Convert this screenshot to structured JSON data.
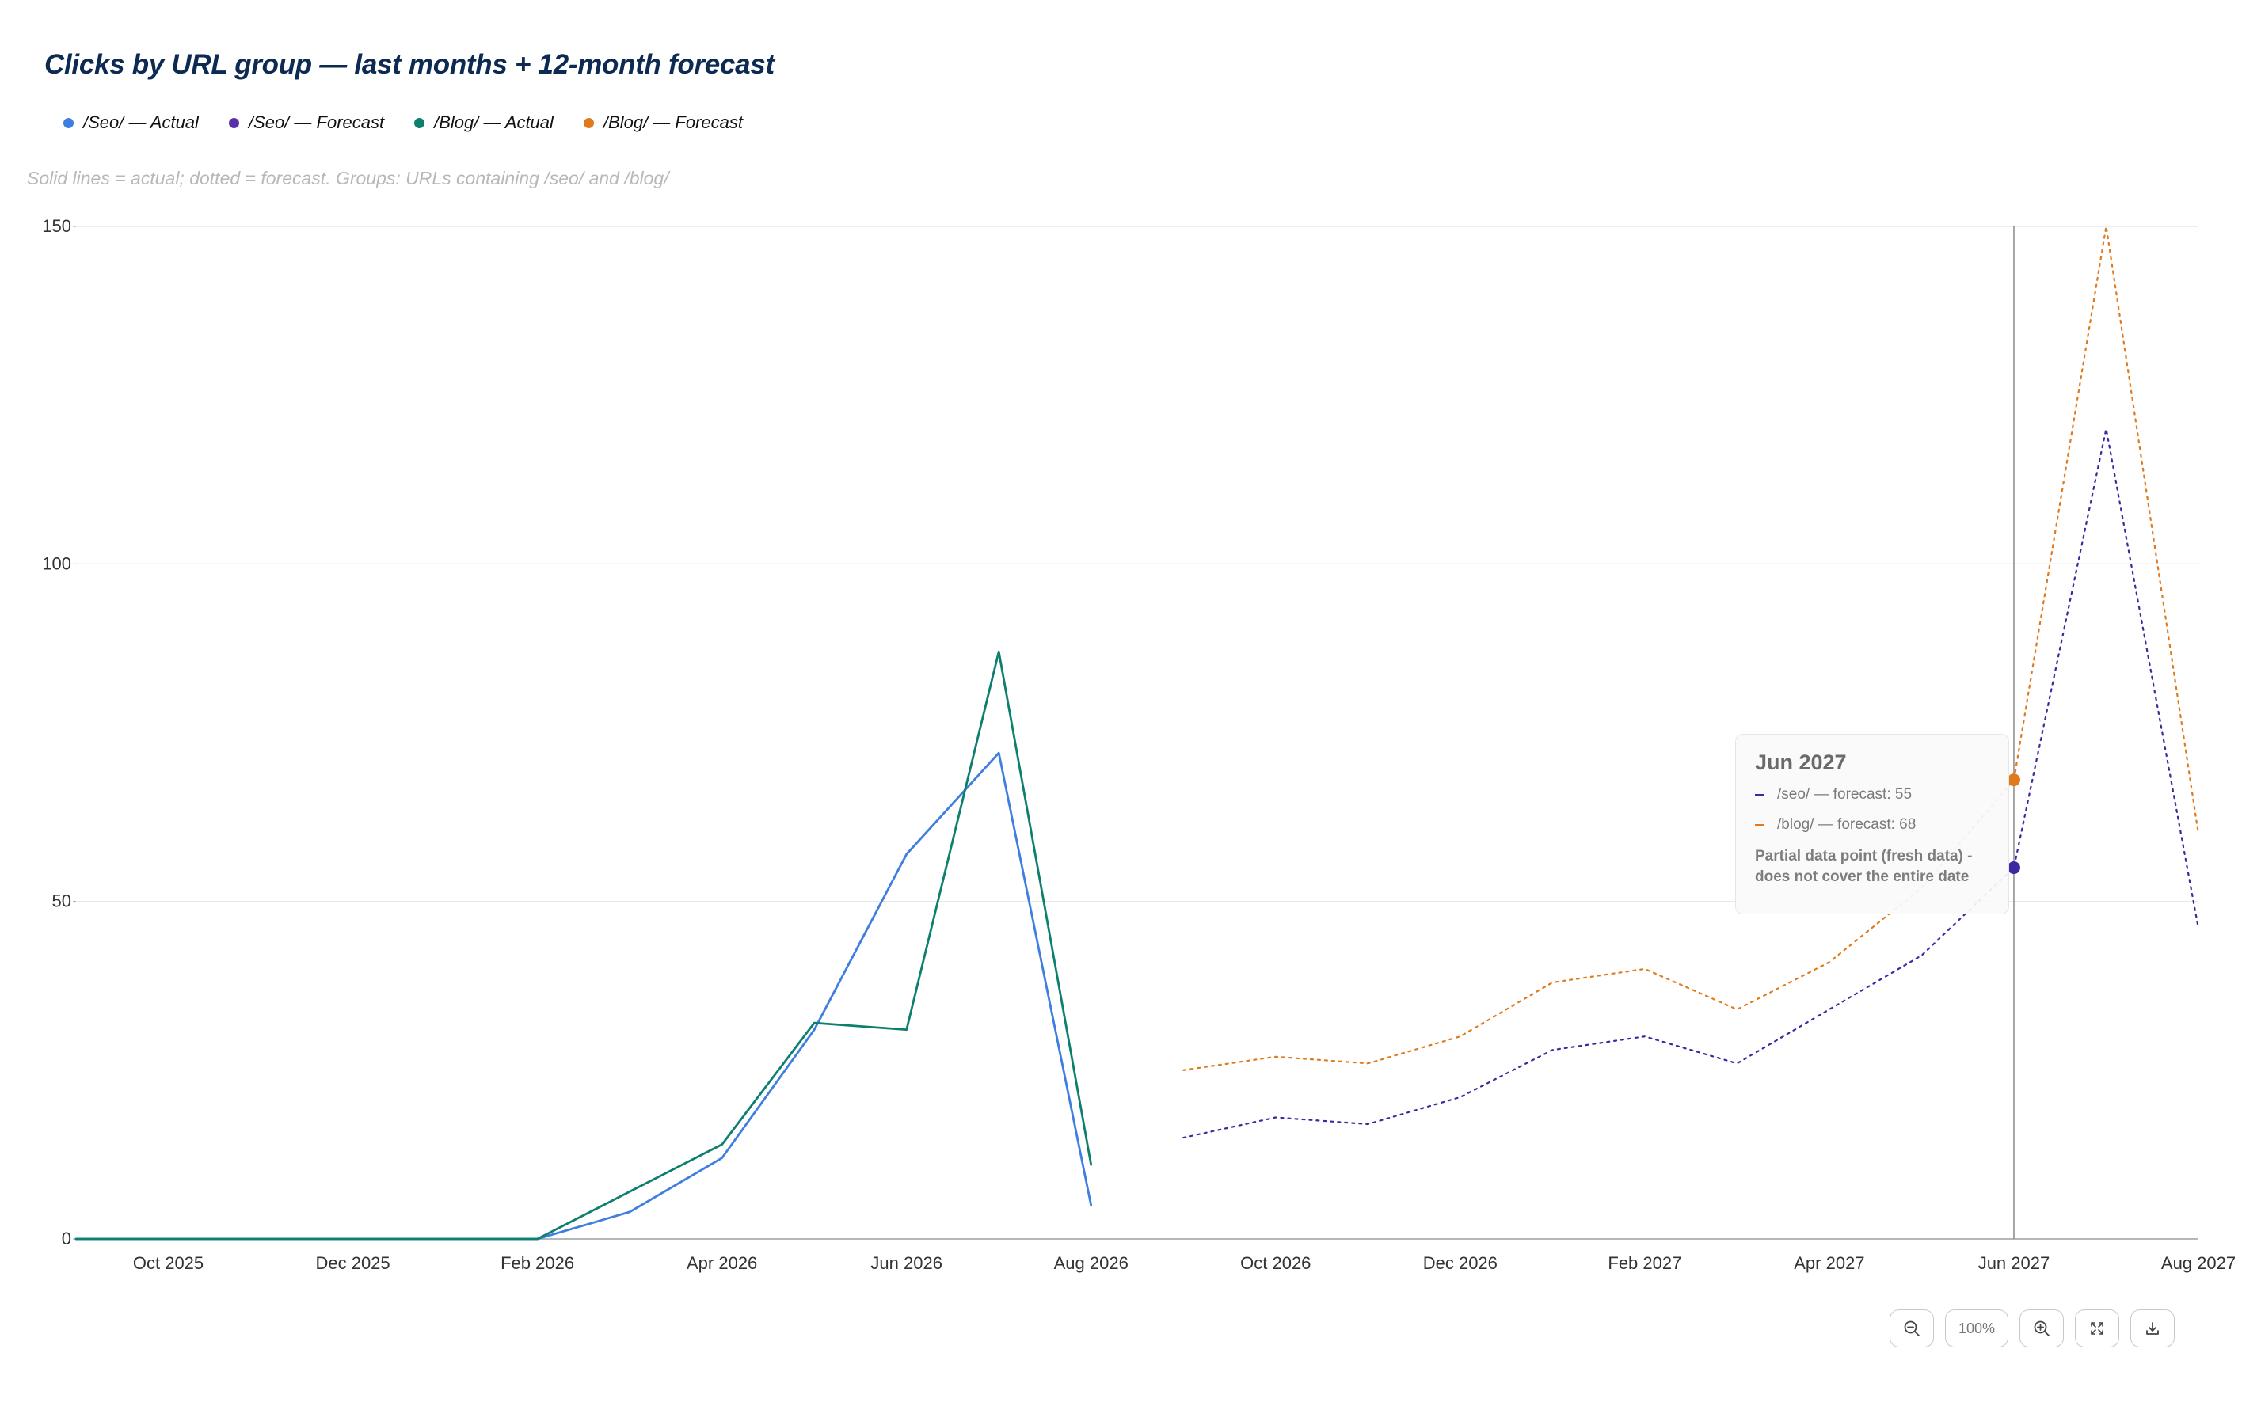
{
  "chart_data": {
    "type": "line",
    "title": "Clicks by URL group — last months + 12-month forecast",
    "subtitle": "Solid lines = actual; dotted = forecast. Groups: URLs containing /seo/ and /blog/",
    "ylim": [
      0,
      150
    ],
    "y_ticks": [
      0,
      50,
      100,
      150
    ],
    "x_ticks": [
      "Oct 2025",
      "Dec 2025",
      "Feb 2026",
      "Apr 2026",
      "Jun 2026",
      "Aug 2026",
      "Oct 2026",
      "Dec 2026",
      "Feb 2027",
      "Apr 2027",
      "Jun 2027",
      "Aug 2027"
    ],
    "x_range": [
      "2025-09",
      "2027-08"
    ],
    "grid": true,
    "legend_position": "top-left",
    "series": [
      {
        "name": "/Seo/ — Actual",
        "color": "#3f7ee0",
        "style": "solid",
        "x": [
          "2025-09",
          "2025-10",
          "2025-11",
          "2025-12",
          "2026-01",
          "2026-02",
          "2026-03",
          "2026-04",
          "2026-05",
          "2026-06",
          "2026-07",
          "2026-08"
        ],
        "values": [
          0,
          0,
          0,
          0,
          0,
          0,
          4,
          12,
          31,
          57,
          72,
          5
        ]
      },
      {
        "name": "/Seo/ — Forecast",
        "color": "#3b2aa0",
        "style": "dotted",
        "x": [
          "2026-09",
          "2026-10",
          "2026-11",
          "2026-12",
          "2027-01",
          "2027-02",
          "2027-03",
          "2027-04",
          "2027-05",
          "2027-06",
          "2027-07",
          "2027-08"
        ],
        "values": [
          15,
          18,
          17,
          21,
          28,
          30,
          26,
          34,
          42,
          55,
          120,
          46
        ]
      },
      {
        "name": "/Blog/ — Actual",
        "color": "#0d7f6e",
        "style": "solid",
        "x": [
          "2025-09",
          "2025-10",
          "2025-11",
          "2025-12",
          "2026-01",
          "2026-02",
          "2026-03",
          "2026-04",
          "2026-05",
          "2026-06",
          "2026-07",
          "2026-08"
        ],
        "values": [
          0,
          0,
          0,
          0,
          0,
          0,
          7,
          14,
          32,
          31,
          87,
          11
        ]
      },
      {
        "name": "/Blog/ — Forecast",
        "color": "#e07a1c",
        "style": "dotted",
        "x": [
          "2026-09",
          "2026-10",
          "2026-11",
          "2026-12",
          "2027-01",
          "2027-02",
          "2027-03",
          "2027-04",
          "2027-05",
          "2027-06",
          "2027-07",
          "2027-08"
        ],
        "values": [
          25,
          27,
          26,
          30,
          38,
          40,
          34,
          41,
          52,
          68,
          150,
          60
        ]
      }
    ],
    "hover": {
      "x": "2027-06",
      "title": "Jun 2027",
      "rows": [
        {
          "label": "/seo/ — forecast: 55",
          "color": "#3b2aa0"
        },
        {
          "label": "/blog/ — forecast: 68",
          "color": "#e07a1c"
        }
      ],
      "note": "Partial data point (fresh data) - does not cover the entire date"
    }
  },
  "legend": [
    {
      "label": "/Seo/ — Actual",
      "color": "#3f7ee0"
    },
    {
      "label": "/Seo/ — Forecast",
      "color": "#5b2fa6"
    },
    {
      "label": "/Blog/ — Actual",
      "color": "#0d7f6e"
    },
    {
      "label": "/Blog/ — Forecast",
      "color": "#e07a1c"
    }
  ],
  "controls": {
    "zoom_out_icon": "zoom-out-icon",
    "zoom_level": "100%",
    "zoom_in_icon": "zoom-in-icon",
    "fullscreen_icon": "fullscreen-icon",
    "download_icon": "download-icon"
  }
}
